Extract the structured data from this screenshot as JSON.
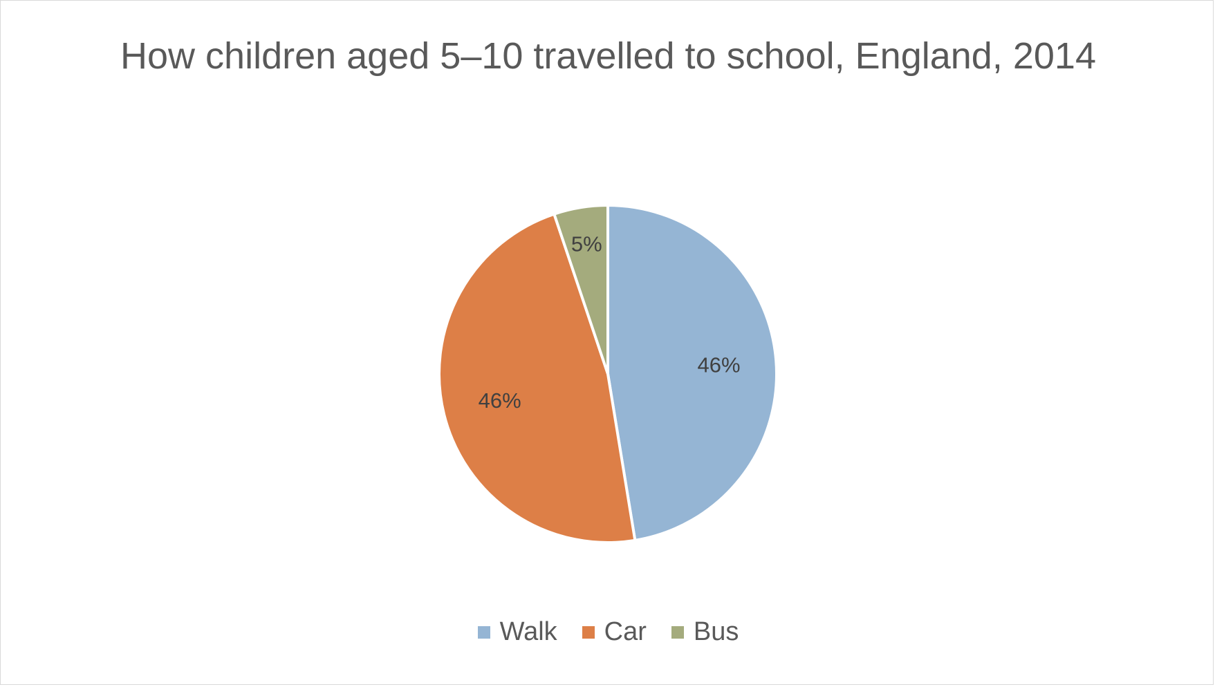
{
  "chart_data": {
    "type": "pie",
    "title": "How children aged 5–10 travelled to school, England, 2014",
    "categories": [
      "Walk",
      "Car",
      "Bus"
    ],
    "values": [
      46,
      46,
      5
    ],
    "data_labels": [
      "46%",
      "46%",
      "5%"
    ],
    "colors": [
      "#95b5d4",
      "#dd7f47",
      "#a4ab7d"
    ],
    "legend_position": "bottom"
  }
}
